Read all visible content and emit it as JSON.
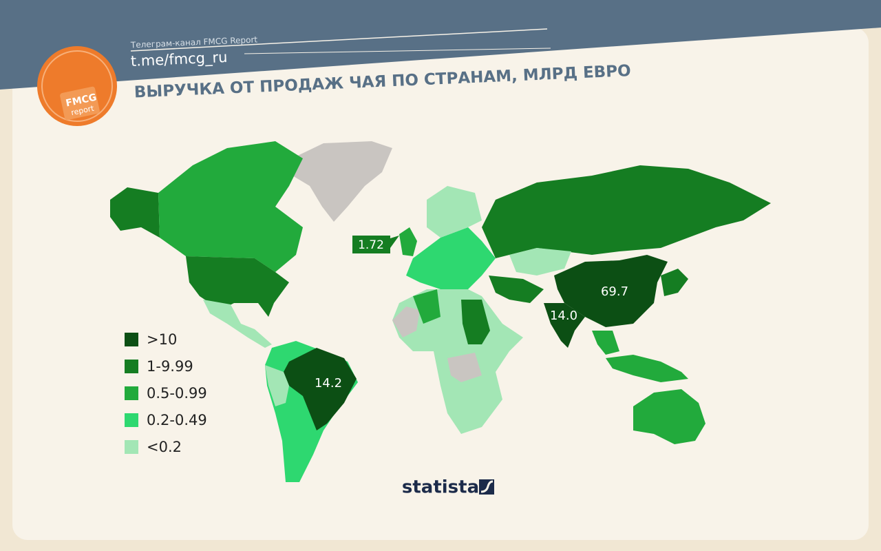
{
  "header": {
    "channel": "Телеграм-канал FMCG Report",
    "link": "t.me/fmcg_ru",
    "title": "ВЫРУЧКА ОТ ПРОДАЖ ЧАЯ ПО СТРАНАМ, МЛРД ЕВРО",
    "logo": [
      "FMCG",
      "report"
    ]
  },
  "legend": {
    "items": [
      {
        "label": ">10",
        "color": "#0c4f14"
      },
      {
        "label": "1-9.99",
        "color": "#157d22"
      },
      {
        "label": "0.5-0.99",
        "color": "#22aa3c"
      },
      {
        "label": "0.2-0.49",
        "color": "#2ed870"
      },
      {
        "label": "<0.2",
        "color": "#a3e6b5"
      }
    ]
  },
  "map": {
    "labels": [
      "1.72",
      "69.7",
      "14.0",
      "14.2"
    ]
  },
  "footer": {
    "source": "statista"
  }
}
